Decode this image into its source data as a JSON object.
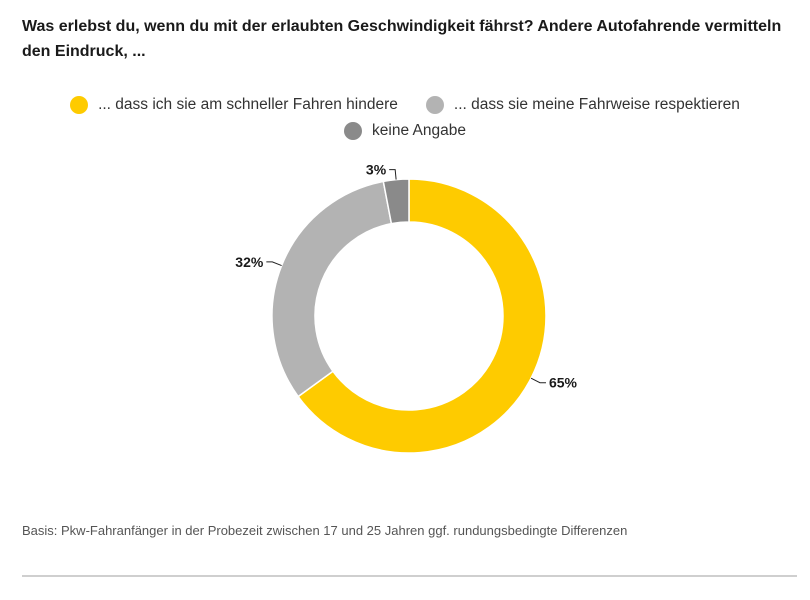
{
  "title": "Was erlebst du, wenn du mit der erlaubten Geschwindigkeit fährst? Andere Autofahrende vermitteln den Eindruck, ...",
  "footnote": "Basis: Pkw-Fahranfänger in der Probezeit zwischen 17 und 25 Jahren ggf. rundungsbedingte Differenzen",
  "chart_data": {
    "type": "pie",
    "donut": true,
    "legend_position": "top",
    "categories": [
      "... dass ich sie am schneller Fahren hindere",
      "... dass sie meine Fahrweise respektieren",
      "keine Angabe"
    ],
    "values": [
      65,
      32,
      3
    ],
    "value_labels": [
      "65%",
      "32%",
      "3%"
    ],
    "colors": [
      "#fecb00",
      "#b3b3b3",
      "#8a8a8a"
    ]
  }
}
